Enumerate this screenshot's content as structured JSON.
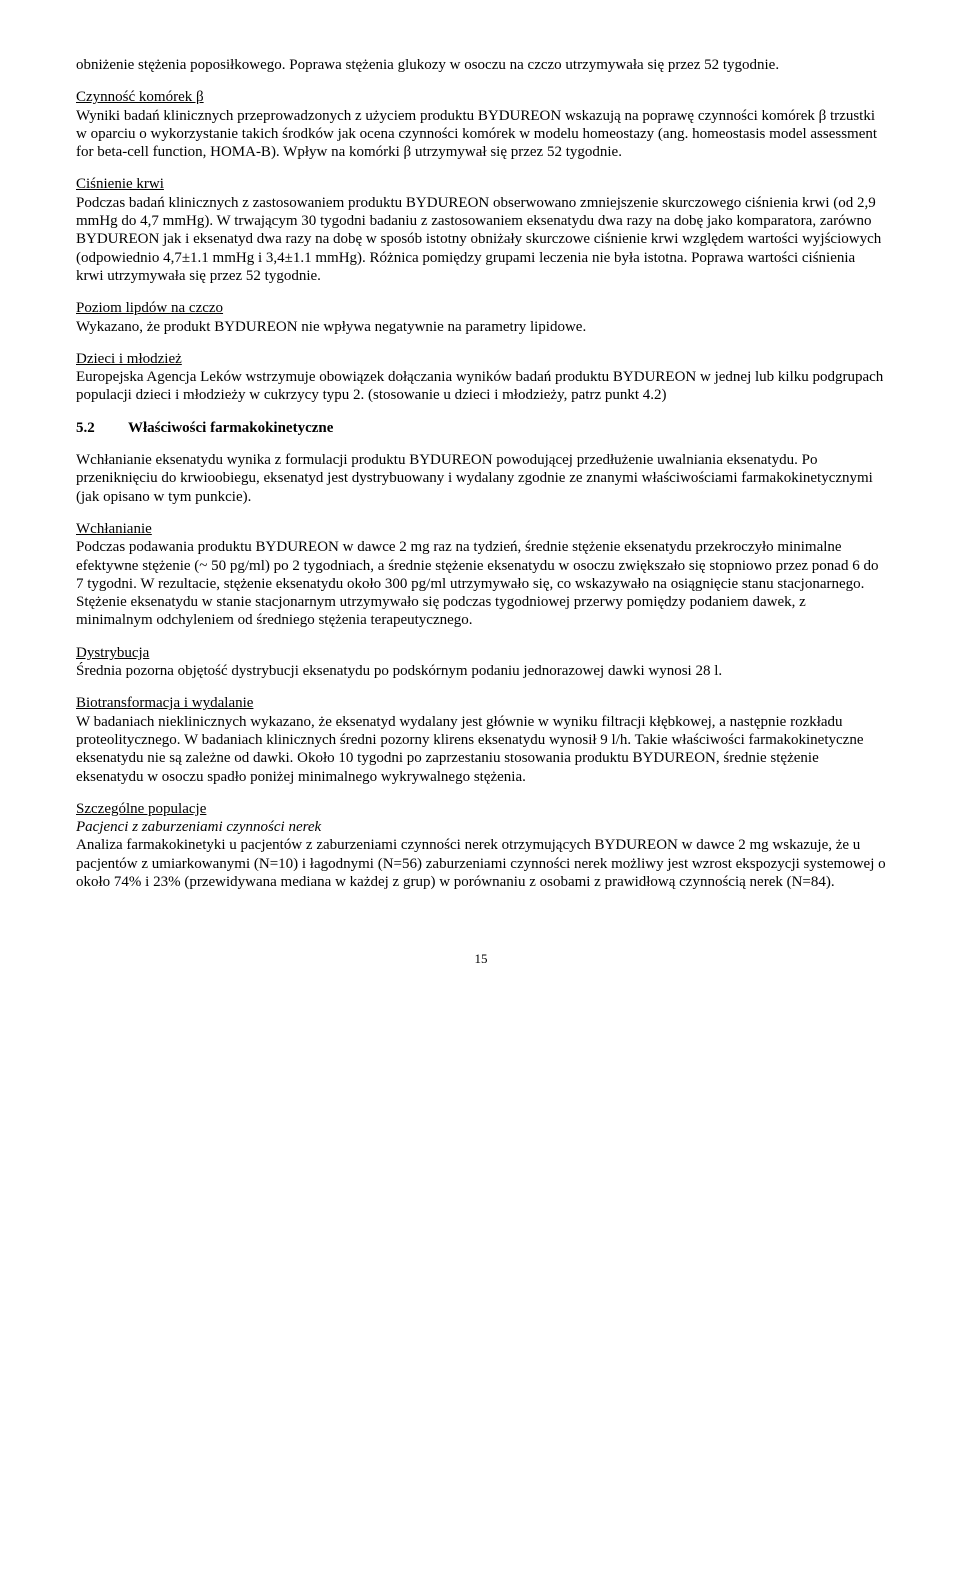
{
  "intro_continuation": "obniżenie stężenia poposiłkowego. Poprawa stężenia glukozy w osoczu na czczo utrzymywała się przez 52 tygodnie.",
  "beta": {
    "heading": "Czynność komórek β",
    "body": "Wyniki badań klinicznych przeprowadzonych z użyciem produktu BYDUREON wskazują na poprawę czynności komórek β trzustki w oparciu o wykorzystanie takich środków jak ocena czynności komórek w modelu homeostazy (ang. homeostasis model assessment for beta-cell function, HOMA-B). Wpływ na komórki β utrzymywał się przez 52 tygodnie."
  },
  "bp": {
    "heading": "Ciśnienie krwi",
    "body": "Podczas badań klinicznych z zastosowaniem produktu BYDUREON obserwowano zmniejszenie skurczowego ciśnienia krwi (od 2,9 mmHg do 4,7 mmHg). W trwającym 30 tygodni badaniu z zastosowaniem eksenatydu dwa razy na dobę jako komparatora, zarówno BYDUREON jak i eksenatyd dwa razy na dobę w sposób istotny obniżały skurczowe ciśnienie krwi względem wartości wyjściowych (odpowiednio 4,7±1.1 mmHg i 3,4±1.1 mmHg). Różnica pomiędzy grupami leczenia nie była istotna. Poprawa wartości ciśnienia krwi utrzymywała się przez 52 tygodnie."
  },
  "lipids": {
    "heading": "Poziom lipdów na czczo",
    "body": "Wykazano, że produkt BYDUREON nie wpływa negatywnie na parametry lipidowe."
  },
  "children": {
    "heading": "Dzieci i młodzież",
    "body": "Europejska Agencja Leków wstrzymuje obowiązek dołączania wyników badań produktu BYDUREON w jednej lub kilku podgrupach populacji dzieci i młodzieży w cukrzycy typu 2. (stosowanie u dzieci i młodzieży, patrz punkt 4.2)"
  },
  "section": {
    "num": "5.2",
    "title": "Właściwości farmakokinetyczne"
  },
  "pk_intro": "Wchłanianie eksenatydu wynika z formulacji produktu BYDUREON powodującej przedłużenie uwalniania eksenatydu. Po przeniknięciu do krwioobiegu, eksenatyd jest dystrybuowany i wydalany zgodnie ze znanymi właściwościami farmakokinetycznymi (jak opisano w tym punkcie).",
  "absorption": {
    "heading": "Wchłanianie",
    "body": "Podczas podawania produktu BYDUREON w dawce 2 mg raz na tydzień, średnie stężenie eksenatydu przekroczyło minimalne efektywne stężenie (~ 50 pg/ml) po 2 tygodniach, a średnie stężenie eksenatydu w osoczu zwiększało się stopniowo przez ponad 6 do 7 tygodni. W rezultacie, stężenie eksenatydu około 300 pg/ml utrzymywało się, co wskazywało na osiągnięcie stanu stacjonarnego. Stężenie eksenatydu w stanie stacjonarnym utrzymywało się podczas tygodniowej przerwy pomiędzy podaniem dawek, z minimalnym odchyleniem od średniego stężenia terapeutycznego."
  },
  "distribution": {
    "heading": "Dystrybucja",
    "body": "Średnia pozorna objętość dystrybucji eksenatydu po podskórnym podaniu jednorazowej dawki wynosi 28 l."
  },
  "biotrans": {
    "heading": "Biotransformacja i wydalanie",
    "body": "W badaniach nieklinicznych wykazano, że eksenatyd wydalany jest głównie w wyniku filtracji kłębkowej, a następnie rozkładu proteolitycznego. W badaniach klinicznych średni pozorny klirens eksenatydu wynosił 9 l/h. Takie właściwości farmakokinetyczne eksenatydu nie są zależne od dawki. Około 10 tygodni po zaprzestaniu stosowania produktu BYDUREON, średnie stężenie eksenatydu w osoczu spadło poniżej minimalnego wykrywalnego stężenia."
  },
  "special": {
    "heading": "Szczególne populacje",
    "subheading": "Pacjenci z zaburzeniami czynności nerek",
    "body": "Analiza farmakokinetyki u pacjentów z zaburzeniami czynności nerek otrzymujących BYDUREON w dawce 2 mg wskazuje, że u pacjentów z umiarkowanymi (N=10) i łagodnymi (N=56) zaburzeniami czynności nerek możliwy jest wzrost ekspozycji systemowej o około 74% i 23% (przewidywana mediana w każdej z grup) w porównaniu z osobami z prawidłową czynnością nerek (N=84)."
  },
  "page_number": "15"
}
